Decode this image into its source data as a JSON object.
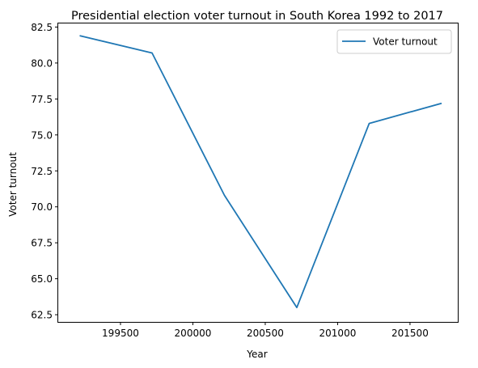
{
  "chart_data": {
    "type": "line",
    "title": "Presidential election voter turnout in South Korea 1992 to 2017",
    "xlabel": "Year",
    "ylabel": "Voter turnout",
    "xlim": [
      199070,
      201830
    ],
    "ylim": [
      62.0,
      82.75
    ],
    "xticks": [
      199500,
      200000,
      200500,
      201000,
      201500
    ],
    "xtick_labels": [
      "199500",
      "200000",
      "200500",
      "201000",
      "201500"
    ],
    "yticks": [
      62.5,
      65.0,
      67.5,
      70.0,
      72.5,
      75.0,
      77.5,
      80.0,
      82.5
    ],
    "ytick_labels": [
      "62.5",
      "65.0",
      "67.5",
      "70.0",
      "72.5",
      "75.0",
      "77.5",
      "80.0",
      "82.5"
    ],
    "grid": false,
    "legend_position": "top-right",
    "series": [
      {
        "name": "Voter turnout",
        "color": "#1f77b4",
        "x": [
          199218,
          199718,
          200218,
          200718,
          201218,
          201718
        ],
        "y": [
          81.9,
          80.7,
          70.8,
          63.0,
          75.8,
          77.2
        ]
      }
    ]
  }
}
